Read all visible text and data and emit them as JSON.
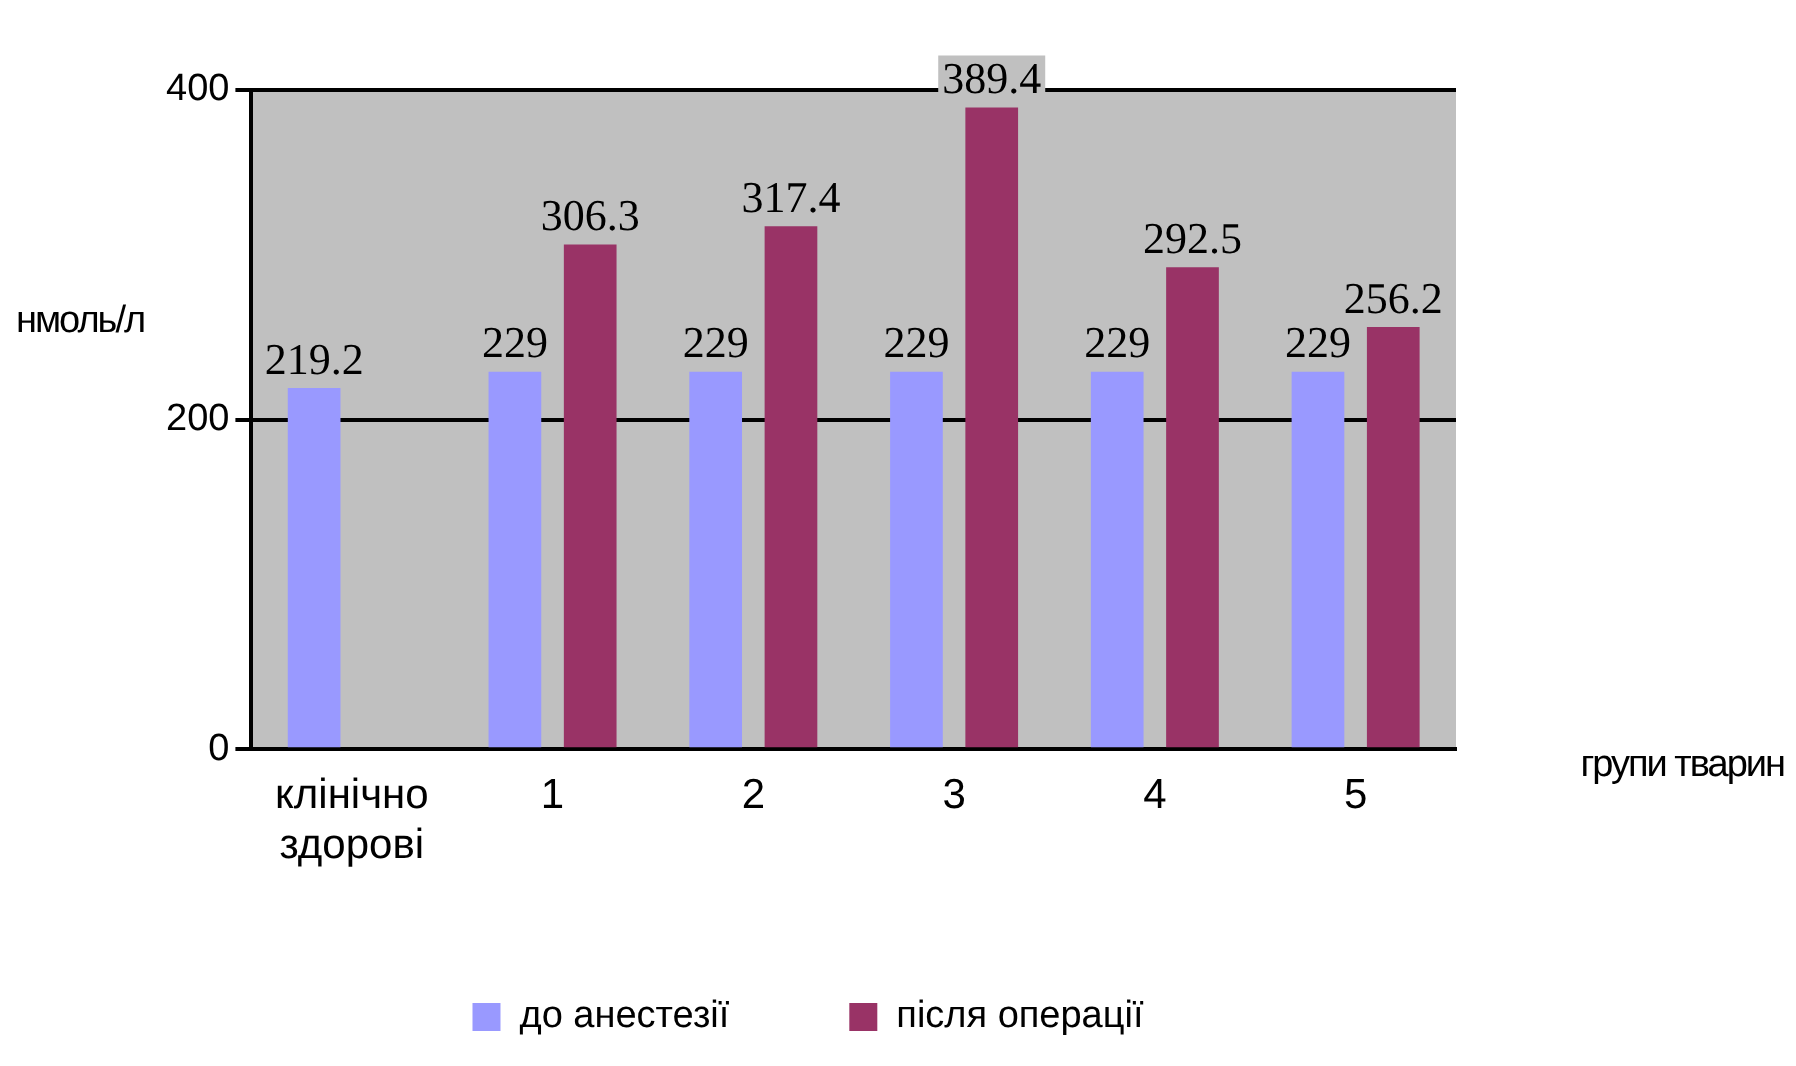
{
  "chart_data": {
    "type": "bar",
    "xlabel": "групи тварин",
    "ylabel": "нмоль/л",
    "categories": [
      "клінічно здорові",
      "1",
      "2",
      "3",
      "4",
      "5"
    ],
    "series": [
      {
        "name": "до анестезії",
        "color": "#9999ff",
        "values": [
          219.2,
          229,
          229,
          229,
          229,
          229
        ]
      },
      {
        "name": "після операції",
        "color": "#993366",
        "values": [
          null,
          306.3,
          317.4,
          389.4,
          292.5,
          256.2
        ]
      }
    ],
    "ylim": [
      0,
      400
    ],
    "yticks": [
      0,
      200,
      400
    ],
    "grid": "y",
    "legend": "bottom",
    "data_labels": true
  }
}
